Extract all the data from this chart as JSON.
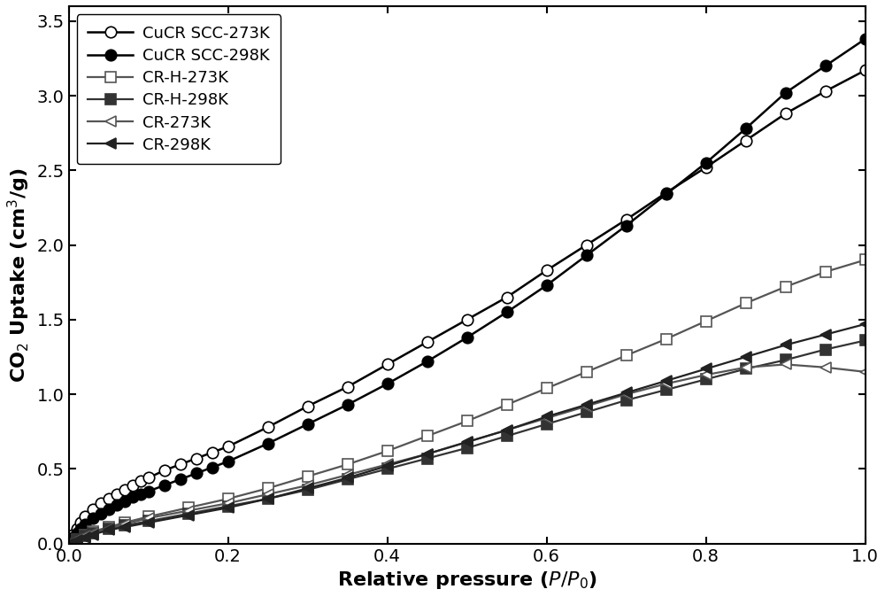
{
  "title": "",
  "xlabel": "Relative pressure ($P/P_0$)",
  "ylabel": "CO$_2$ Uptake (cm$^3$/g)",
  "xlim": [
    0.0,
    1.0
  ],
  "ylim": [
    0.0,
    3.6
  ],
  "yticks": [
    0.0,
    0.5,
    1.0,
    1.5,
    2.0,
    2.5,
    3.0,
    3.5
  ],
  "xticks": [
    0.0,
    0.2,
    0.4,
    0.6,
    0.8,
    1.0
  ],
  "series": [
    {
      "label": "CuCR SCC-273K",
      "linecolor": "#000000",
      "marker": "o",
      "fillstyle": "none",
      "markersize": 9,
      "linewidth": 1.8,
      "x": [
        0.0,
        0.005,
        0.01,
        0.015,
        0.02,
        0.03,
        0.04,
        0.05,
        0.06,
        0.07,
        0.08,
        0.09,
        0.1,
        0.12,
        0.14,
        0.16,
        0.18,
        0.2,
        0.25,
        0.3,
        0.35,
        0.4,
        0.45,
        0.5,
        0.55,
        0.6,
        0.65,
        0.7,
        0.75,
        0.8,
        0.85,
        0.9,
        0.95,
        1.0
      ],
      "y": [
        0.0,
        0.06,
        0.1,
        0.14,
        0.18,
        0.23,
        0.27,
        0.3,
        0.33,
        0.36,
        0.39,
        0.42,
        0.44,
        0.49,
        0.53,
        0.57,
        0.61,
        0.65,
        0.78,
        0.92,
        1.05,
        1.2,
        1.35,
        1.5,
        1.65,
        1.83,
        2.0,
        2.17,
        2.35,
        2.52,
        2.7,
        2.88,
        3.03,
        3.17
      ]
    },
    {
      "label": "CuCR SCC-298K",
      "linecolor": "#000000",
      "marker": "o",
      "fillstyle": "full",
      "markersize": 9,
      "linewidth": 1.8,
      "x": [
        0.0,
        0.005,
        0.01,
        0.015,
        0.02,
        0.03,
        0.04,
        0.05,
        0.06,
        0.07,
        0.08,
        0.09,
        0.1,
        0.12,
        0.14,
        0.16,
        0.18,
        0.2,
        0.25,
        0.3,
        0.35,
        0.4,
        0.45,
        0.5,
        0.55,
        0.6,
        0.65,
        0.7,
        0.75,
        0.8,
        0.85,
        0.9,
        0.95,
        1.0
      ],
      "y": [
        0.0,
        0.04,
        0.07,
        0.1,
        0.13,
        0.17,
        0.2,
        0.23,
        0.26,
        0.28,
        0.31,
        0.33,
        0.35,
        0.39,
        0.43,
        0.47,
        0.51,
        0.55,
        0.67,
        0.8,
        0.93,
        1.07,
        1.22,
        1.38,
        1.55,
        1.73,
        1.93,
        2.13,
        2.34,
        2.55,
        2.78,
        3.02,
        3.2,
        3.38
      ]
    },
    {
      "label": "CR-H-273K",
      "linecolor": "#555555",
      "marker": "s",
      "fillstyle": "none",
      "markersize": 8,
      "linewidth": 1.6,
      "x": [
        0.0,
        0.01,
        0.02,
        0.03,
        0.05,
        0.07,
        0.1,
        0.15,
        0.2,
        0.25,
        0.3,
        0.35,
        0.4,
        0.45,
        0.5,
        0.55,
        0.6,
        0.65,
        0.7,
        0.75,
        0.8,
        0.85,
        0.9,
        0.95,
        1.0
      ],
      "y": [
        0.0,
        0.03,
        0.06,
        0.08,
        0.11,
        0.14,
        0.18,
        0.24,
        0.3,
        0.37,
        0.45,
        0.53,
        0.62,
        0.72,
        0.82,
        0.93,
        1.04,
        1.15,
        1.26,
        1.37,
        1.49,
        1.61,
        1.72,
        1.82,
        1.9
      ]
    },
    {
      "label": "CR-H-298K",
      "linecolor": "#333333",
      "marker": "s",
      "fillstyle": "full",
      "markersize": 8,
      "linewidth": 1.6,
      "x": [
        0.0,
        0.01,
        0.02,
        0.03,
        0.05,
        0.07,
        0.1,
        0.15,
        0.2,
        0.25,
        0.3,
        0.35,
        0.4,
        0.45,
        0.5,
        0.55,
        0.6,
        0.65,
        0.7,
        0.75,
        0.8,
        0.85,
        0.9,
        0.95,
        1.0
      ],
      "y": [
        0.0,
        0.03,
        0.05,
        0.07,
        0.1,
        0.12,
        0.15,
        0.2,
        0.25,
        0.3,
        0.36,
        0.43,
        0.5,
        0.57,
        0.64,
        0.72,
        0.8,
        0.88,
        0.96,
        1.03,
        1.1,
        1.17,
        1.23,
        1.3,
        1.36
      ]
    },
    {
      "label": "CR-273K",
      "linecolor": "#555555",
      "marker": "<",
      "fillstyle": "none",
      "markersize": 8,
      "linewidth": 1.6,
      "x": [
        0.0,
        0.01,
        0.02,
        0.03,
        0.05,
        0.07,
        0.1,
        0.15,
        0.2,
        0.25,
        0.3,
        0.35,
        0.4,
        0.45,
        0.5,
        0.55,
        0.6,
        0.65,
        0.7,
        0.75,
        0.8,
        0.85,
        0.9,
        0.95,
        1.0
      ],
      "y": [
        0.0,
        0.03,
        0.05,
        0.07,
        0.1,
        0.13,
        0.17,
        0.22,
        0.27,
        0.33,
        0.39,
        0.46,
        0.53,
        0.6,
        0.68,
        0.76,
        0.84,
        0.92,
        1.0,
        1.07,
        1.13,
        1.18,
        1.2,
        1.18,
        1.15
      ]
    },
    {
      "label": "CR-298K",
      "linecolor": "#222222",
      "marker": "<",
      "fillstyle": "full",
      "markersize": 8,
      "linewidth": 1.6,
      "x": [
        0.0,
        0.01,
        0.02,
        0.03,
        0.05,
        0.07,
        0.1,
        0.15,
        0.2,
        0.25,
        0.3,
        0.35,
        0.4,
        0.45,
        0.5,
        0.55,
        0.6,
        0.65,
        0.7,
        0.75,
        0.8,
        0.85,
        0.9,
        0.95,
        1.0
      ],
      "y": [
        0.0,
        0.02,
        0.04,
        0.06,
        0.09,
        0.11,
        0.14,
        0.19,
        0.24,
        0.3,
        0.37,
        0.44,
        0.52,
        0.6,
        0.68,
        0.76,
        0.85,
        0.93,
        1.01,
        1.09,
        1.17,
        1.25,
        1.33,
        1.4,
        1.47
      ]
    }
  ],
  "legend_fontsize": 13,
  "axis_label_fontsize": 16,
  "tick_fontsize": 14,
  "figure_facecolor": "#ffffff",
  "axis_facecolor": "#ffffff",
  "spine_color": "#000000",
  "tick_color": "#000000",
  "legend_loc": "upper left",
  "legend_frameon": true,
  "legend_edgecolor": "#000000"
}
